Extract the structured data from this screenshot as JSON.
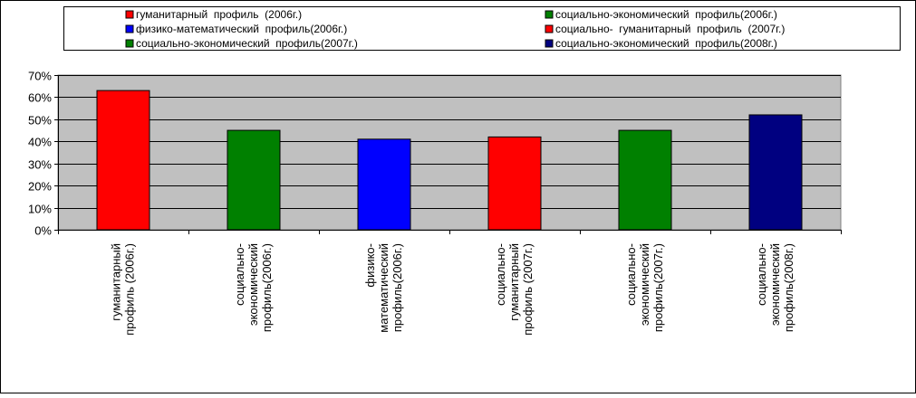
{
  "chart_data": {
    "type": "bar",
    "title": "",
    "xlabel": "",
    "ylabel": "",
    "ylim": [
      0,
      70
    ],
    "y_ticks": [
      "0%",
      "10%",
      "20%",
      "30%",
      "40%",
      "50%",
      "60%",
      "70%"
    ],
    "y_unit": "%",
    "grid": true,
    "plot_background": "#c0c0c0",
    "legend_position": "top",
    "categories": [
      [
        "гуманитарный",
        "профиль (2006г.)"
      ],
      [
        "социально-",
        "экономический",
        "профиль(2006г.)"
      ],
      [
        "физико-",
        "математический",
        "профиль(2006г.)"
      ],
      [
        "социально-",
        "гуманитарный",
        "профиль (2007г.)"
      ],
      [
        "социально-",
        "экономический",
        "профиль(2007г.)"
      ],
      [
        "социально-",
        "экономический",
        "профиль(2008г.)"
      ]
    ],
    "values": [
      63,
      45,
      41,
      42,
      45,
      52
    ],
    "colors": [
      "#ff0000",
      "#008000",
      "#0000ff",
      "#ff0000",
      "#008000",
      "#000080"
    ],
    "legend": [
      {
        "label": "гуманитарный  профиль  (2006г.)",
        "color": "#ff0000"
      },
      {
        "label": "социально-экономический  профиль(2006г.)",
        "color": "#008000"
      },
      {
        "label": "физико-математический  профиль(2006г.)",
        "color": "#0000ff"
      },
      {
        "label": "социально-  гуманитарный  профиль  (2007г.)",
        "color": "#ff0000"
      },
      {
        "label": "социально-экономический  профиль(2007г.)",
        "color": "#008000"
      },
      {
        "label": "социально-экономический  профиль(2008г.)",
        "color": "#000080"
      }
    ]
  }
}
